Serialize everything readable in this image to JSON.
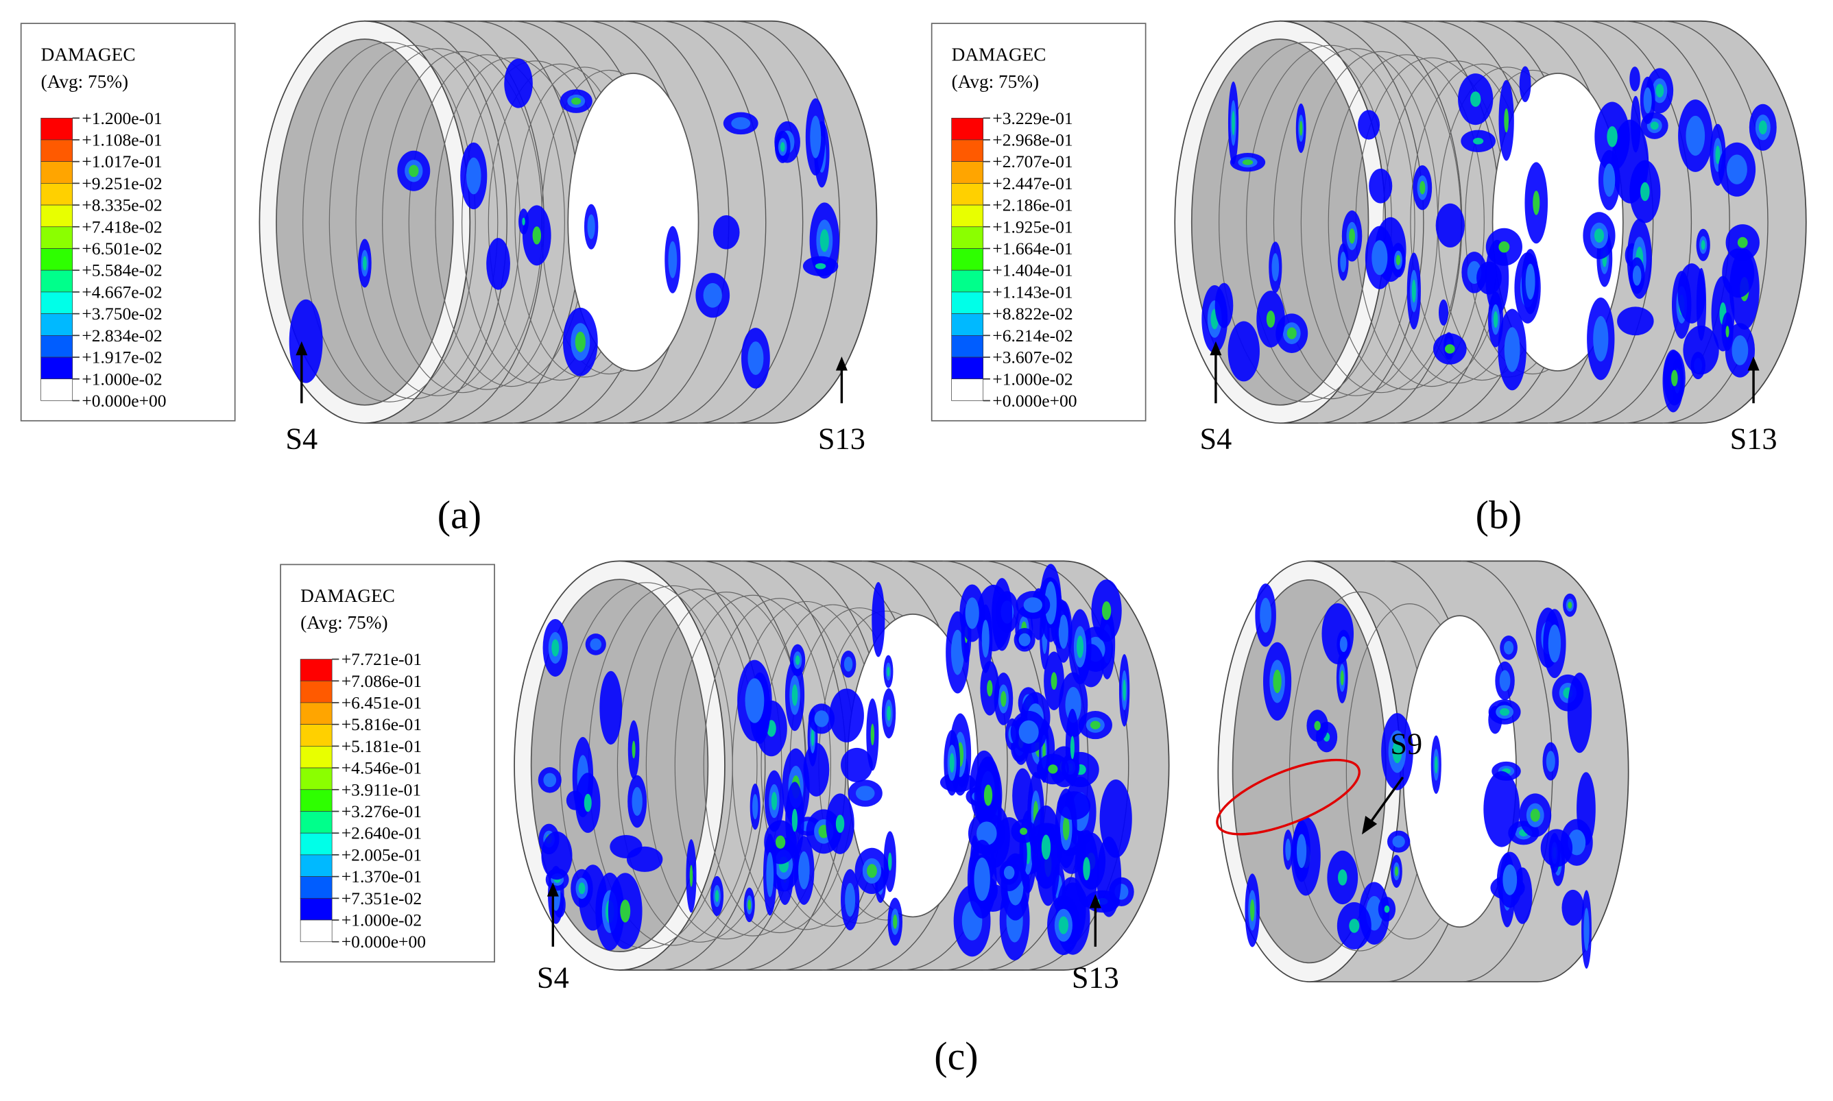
{
  "panels": [
    {
      "letter": "(a)",
      "legend": {
        "title": "DAMAGEC",
        "subtitle": "(Avg: 75%)",
        "labels": [
          "+1.200e-01",
          "+1.108e-01",
          "+1.017e-01",
          "+9.251e-02",
          "+8.335e-02",
          "+7.418e-02",
          "+6.501e-02",
          "+5.584e-02",
          "+4.667e-02",
          "+3.750e-02",
          "+2.834e-02",
          "+1.917e-02",
          "+1.000e-02",
          "+0.000e+00"
        ]
      },
      "markers": [
        "S4",
        "S13"
      ]
    },
    {
      "letter": "(b)",
      "legend": {
        "title": "DAMAGEC",
        "subtitle": "(Avg: 75%)",
        "labels": [
          "+3.229e-01",
          "+2.968e-01",
          "+2.707e-01",
          "+2.447e-01",
          "+2.186e-01",
          "+1.925e-01",
          "+1.664e-01",
          "+1.404e-01",
          "+1.143e-01",
          "+8.822e-02",
          "+6.214e-02",
          "+3.607e-02",
          "+1.000e-02",
          "+0.000e+00"
        ]
      },
      "markers": [
        "S4",
        "S13"
      ]
    },
    {
      "letter": "(c)",
      "legend": {
        "title": "DAMAGEC",
        "subtitle": "(Avg: 75%)",
        "labels": [
          "+7.721e-01",
          "+7.086e-01",
          "+6.451e-01",
          "+5.816e-01",
          "+5.181e-01",
          "+4.546e-01",
          "+3.911e-01",
          "+3.276e-01",
          "+2.640e-01",
          "+2.005e-01",
          "+1.370e-01",
          "+7.351e-02",
          "+1.000e-02",
          "+0.000e+00"
        ]
      },
      "markers": [
        "S4",
        "S13",
        "S9"
      ]
    }
  ]
}
